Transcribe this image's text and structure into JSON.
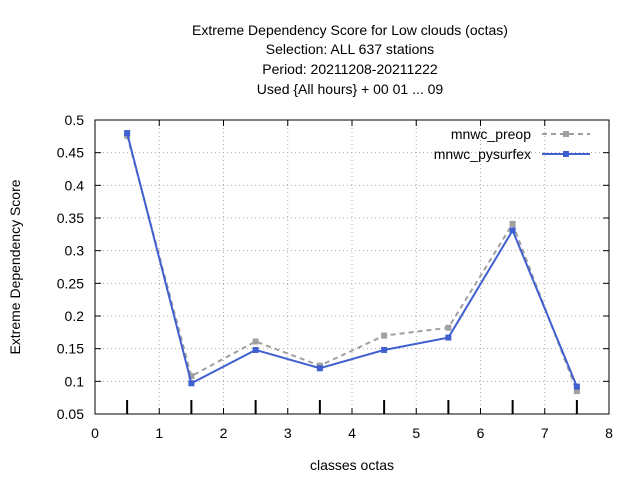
{
  "chart_data": {
    "type": "line",
    "title_lines": [
      "Extreme Dependency Score  for Low clouds (octas)",
      "Selection: ALL    637 stations",
      "Period: 20211208-20211222",
      "Used {All hours} + 00 01 ... 09"
    ],
    "xlabel": "classes octas",
    "ylabel": "Extreme Dependency Score",
    "xlim": [
      0,
      8
    ],
    "ylim": [
      0.05,
      0.5
    ],
    "x_ticks": [
      "0",
      "1",
      "2",
      "3",
      "4",
      "5",
      "6",
      "7",
      "8"
    ],
    "y_ticks": [
      "0.05",
      "0.1",
      "0.15",
      "0.2",
      "0.25",
      "0.3",
      "0.35",
      "0.4",
      "0.45",
      "0.5"
    ],
    "grid": true,
    "legend_position": "top-right",
    "x": [
      0.5,
      1.5,
      2.5,
      3.5,
      4.5,
      5.5,
      6.5,
      7.5
    ],
    "series": [
      {
        "name": "mnwc_preop",
        "color": "#a0a0a0",
        "dashed": true,
        "values": [
          0.476,
          0.108,
          0.161,
          0.124,
          0.17,
          0.182,
          0.341,
          0.085
        ]
      },
      {
        "name": "mnwc_pysurfex",
        "color": "#4060d0",
        "dashed": false,
        "values": [
          0.48,
          0.097,
          0.148,
          0.12,
          0.148,
          0.167,
          0.331,
          0.092
        ]
      }
    ]
  }
}
